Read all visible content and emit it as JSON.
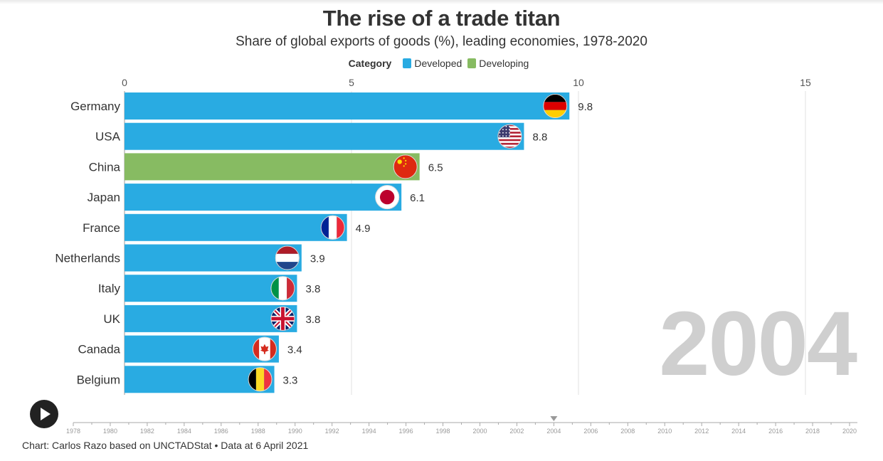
{
  "header": {
    "title": "The rise of a trade titan",
    "subtitle": "Share of global exports of goods (%), leading economies, 1978-2020"
  },
  "legend": {
    "title": "Category",
    "items": [
      {
        "label": "Developed",
        "color": "#29abe2"
      },
      {
        "label": "Developing",
        "color": "#87bb62"
      }
    ]
  },
  "chart_data": {
    "type": "bar",
    "orientation": "horizontal",
    "title": "The rise of a trade titan",
    "subtitle": "Share of global exports of goods (%), leading economies, 1978-2020",
    "xlim": [
      0,
      16.5
    ],
    "x_ticks": [
      0,
      5,
      10,
      15
    ],
    "grid": true,
    "legend_placement": "top-center",
    "categories": [
      "Germany",
      "USA",
      "China",
      "Japan",
      "France",
      "Netherlands",
      "Italy",
      "UK",
      "Canada",
      "Belgium"
    ],
    "values": [
      9.8,
      8.8,
      6.5,
      6.1,
      4.9,
      3.9,
      3.8,
      3.8,
      3.4,
      3.3
    ],
    "value_labels": [
      "9.8",
      "8.8",
      "6.5",
      "6.1",
      "4.9",
      "3.9",
      "3.8",
      "3.8",
      "3.4",
      "3.3"
    ],
    "bar_category": [
      "Developed",
      "Developed",
      "Developing",
      "Developed",
      "Developed",
      "Developed",
      "Developed",
      "Developed",
      "Developed",
      "Developed"
    ],
    "flags": [
      "germany-flag-icon",
      "usa-flag-icon",
      "china-flag-icon",
      "japan-flag-icon",
      "france-flag-icon",
      "netherlands-flag-icon",
      "italy-flag-icon",
      "uk-flag-icon",
      "canada-flag-icon",
      "belgium-flag-icon"
    ],
    "colors": {
      "Developed": "#29abe2",
      "Developing": "#87bb62"
    }
  },
  "year_display": "2004",
  "timeline": {
    "range": [
      1978,
      2020
    ],
    "labels": [
      "1978",
      "1980",
      "1982",
      "1984",
      "1986",
      "1988",
      "1990",
      "1992",
      "1994",
      "1996",
      "1998",
      "2000",
      "2002",
      "2004",
      "2006",
      "2008",
      "2010",
      "2012",
      "2014",
      "2016",
      "2018",
      "2020"
    ],
    "current": 2004
  },
  "controls": {
    "play_icon": "play-icon"
  },
  "footer": {
    "credit": "Chart: Carlos Razo based on UNCTADStat • Data at 6 April 2021"
  }
}
